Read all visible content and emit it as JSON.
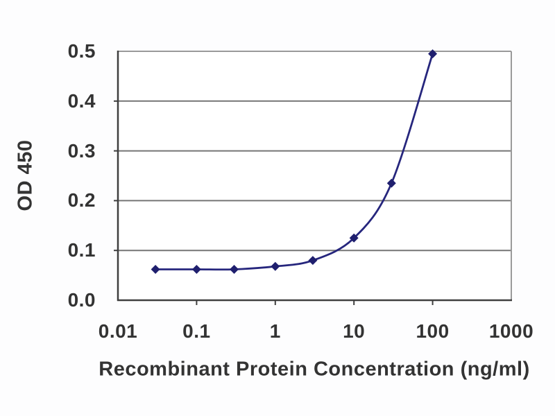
{
  "figure": {
    "description": "ELISA binding curve, optical density versus recombinant protein concentration",
    "background_color": "#fdfdfe"
  },
  "chart_data": {
    "type": "line",
    "title": "",
    "xlabel": "Recombinant Protein Concentration (ng/ml)",
    "ylabel": "OD 450",
    "x_scale": "log",
    "y_scale": "linear",
    "xlim": [
      0.01,
      1000
    ],
    "ylim": [
      0.0,
      0.5
    ],
    "x_tick_labels": [
      "0.01",
      "0.1",
      "1",
      "10",
      "100",
      "1000"
    ],
    "x_tick_values": [
      0.01,
      0.1,
      1,
      10,
      100,
      1000
    ],
    "y_tick_labels": [
      "0.0",
      "0.1",
      "0.2",
      "0.3",
      "0.4",
      "0.5"
    ],
    "y_tick_values": [
      0,
      0.1,
      0.2,
      0.3,
      0.4,
      0.5
    ],
    "grid": "horizontal",
    "legend_position": "none",
    "series": [
      {
        "name": "OD 450 response",
        "marker": "diamond",
        "x": [
          0.03,
          0.1,
          0.3,
          1,
          3,
          10,
          30,
          100
        ],
        "y": [
          0.062,
          0.062,
          0.062,
          0.068,
          0.08,
          0.125,
          0.235,
          0.495
        ]
      }
    ],
    "colors": {
      "line": "#26267d",
      "marker": "#1f1f6e",
      "grid": "#757575",
      "axis": "#3f3f3f",
      "border_light": "#9a9a9a",
      "text": "#333333",
      "plot_background": "#ffffff"
    }
  }
}
